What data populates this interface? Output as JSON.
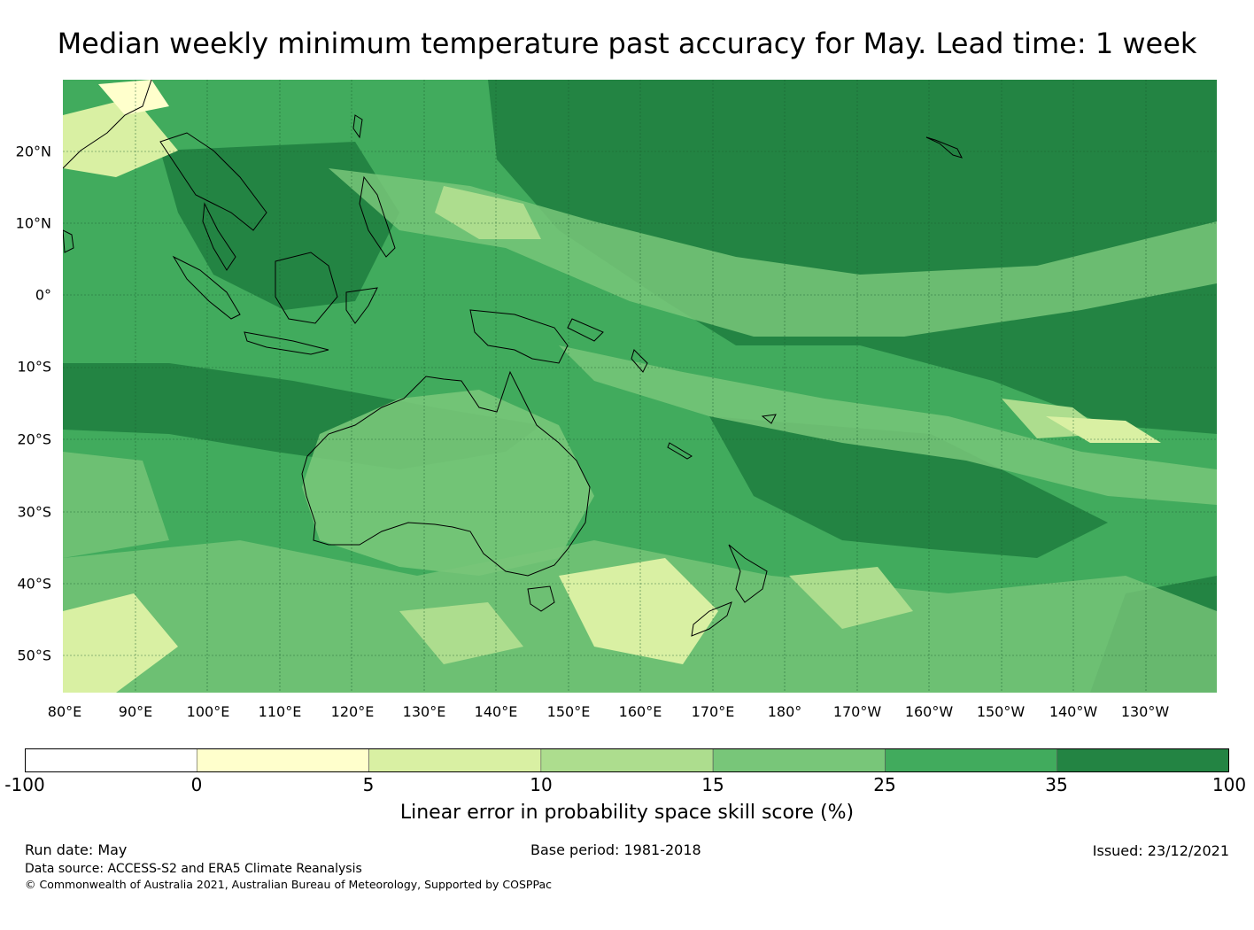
{
  "title": "Median weekly minimum temperature past accuracy for May. Lead time: 1 week",
  "map": {
    "lat_labels": [
      "20°N",
      "10°N",
      "0°",
      "10°S",
      "20°S",
      "30°S",
      "40°S",
      "50°S"
    ],
    "lon_labels": [
      "80°E",
      "90°E",
      "100°E",
      "110°E",
      "120°E",
      "130°E",
      "140°E",
      "150°E",
      "160°E",
      "170°E",
      "180°",
      "170°W",
      "160°W",
      "150°W",
      "140°W",
      "130°W"
    ]
  },
  "colorbar": {
    "ticks": [
      "-100",
      "0",
      "5",
      "10",
      "15",
      "25",
      "35",
      "100"
    ],
    "colors": [
      "#ffffff",
      "#ffffcc",
      "#d9f0a3",
      "#addd8e",
      "#78c679",
      "#41ab5d",
      "#238443"
    ],
    "label": "Linear error in probability space skill score (%)"
  },
  "footer": {
    "run_date": "Run date: May",
    "base_period": "Base period: 1981-2018",
    "issued": "Issued: 23/12/2021",
    "data_source": "Data source: ACCESS-S2 and ERA5 Climate Reanalysis",
    "copyright": "© Commonwealth of Australia 2021, Australian Bureau of Meteorology, Supported by COSPPac"
  }
}
